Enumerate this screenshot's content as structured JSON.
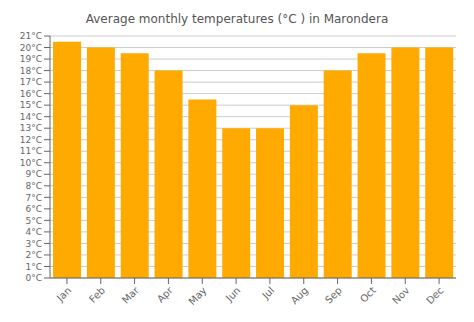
{
  "chart_data": {
    "type": "bar",
    "title": "Average monthly temperatures (°C ) in Marondera",
    "categories": [
      "Jan",
      "Feb",
      "Mar",
      "Apr",
      "May",
      "Jun",
      "Jul",
      "Aug",
      "Sep",
      "Oct",
      "Nov",
      "Dec"
    ],
    "values": [
      20.5,
      20.0,
      19.5,
      18.0,
      15.5,
      13.0,
      13.0,
      15.0,
      18.0,
      19.5,
      20.0,
      20.0
    ],
    "color": "#FFAA00",
    "ylim": [
      0,
      21
    ],
    "yticks": [
      {
        "value": 0,
        "label": "0°C"
      },
      {
        "value": 1,
        "label": "1°C"
      },
      {
        "value": 2,
        "label": "2°C"
      },
      {
        "value": 3,
        "label": "3°C"
      },
      {
        "value": 4,
        "label": "4°C"
      },
      {
        "value": 5,
        "label": "5°C"
      },
      {
        "value": 6,
        "label": "6°C"
      },
      {
        "value": 7,
        "label": "7°C"
      },
      {
        "value": 8,
        "label": "8°C"
      },
      {
        "value": 9,
        "label": "9°C"
      },
      {
        "value": 10,
        "label": "10°C"
      },
      {
        "value": 11,
        "label": "11°C"
      },
      {
        "value": 12,
        "label": "12°C"
      },
      {
        "value": 13,
        "label": "13°C"
      },
      {
        "value": 14,
        "label": "14°C"
      },
      {
        "value": 15,
        "label": "15°C"
      },
      {
        "value": 16,
        "label": "16°C"
      },
      {
        "value": 17,
        "label": "17°C"
      },
      {
        "value": 18,
        "label": "18°C"
      },
      {
        "value": 19,
        "label": "19°C"
      },
      {
        "value": 20,
        "label": "20°C"
      },
      {
        "value": 21,
        "label": "21°C"
      }
    ],
    "grid": true
  }
}
